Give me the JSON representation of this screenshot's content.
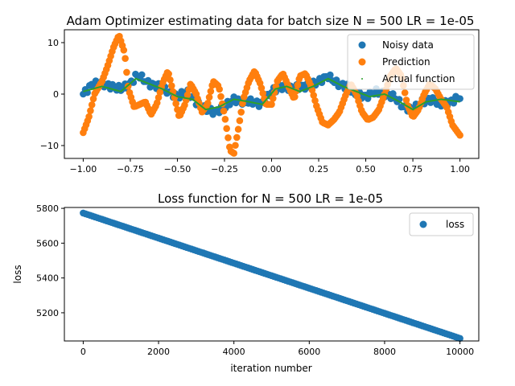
{
  "chart_data": [
    {
      "type": "scatter",
      "title": "Adam Optimizer estimating data for batch size N = 500 LR = 1e-05",
      "xlabel": "",
      "ylabel": "",
      "xlim": [
        -1.1,
        1.1
      ],
      "ylim": [
        -12.5,
        12.5
      ],
      "xticks": [
        -1.0,
        -0.75,
        -0.5,
        -0.25,
        0.0,
        0.25,
        0.5,
        0.75,
        1.0
      ],
      "xtick_labels": [
        "−1.00",
        "−0.75",
        "−0.50",
        "−0.25",
        "0.00",
        "0.25",
        "0.50",
        "0.75",
        "1.00"
      ],
      "yticks": [
        -10,
        0,
        10
      ],
      "ytick_labels": [
        "−10",
        "0",
        "10"
      ],
      "grid": false,
      "legend_position": "top-right",
      "series": [
        {
          "name": "Noisy data",
          "style": "scatter",
          "color": "#1f77b4",
          "x": [
            -1.0,
            -0.95,
            -0.9,
            -0.85,
            -0.8,
            -0.75,
            -0.72,
            -0.7,
            -0.65,
            -0.6,
            -0.55,
            -0.5,
            -0.45,
            -0.4,
            -0.35,
            -0.3,
            -0.25,
            -0.2,
            -0.15,
            -0.1,
            -0.05,
            0.0,
            0.05,
            0.1,
            0.15,
            0.2,
            0.25,
            0.3,
            0.35,
            0.4,
            0.45,
            0.5,
            0.55,
            0.6,
            0.65,
            0.7,
            0.75,
            0.8,
            0.85,
            0.9,
            0.95,
            1.0
          ],
          "y": [
            0.0,
            2.0,
            2.0,
            1.5,
            1.0,
            2.0,
            3.5,
            3.5,
            2.0,
            1.5,
            0.5,
            -0.5,
            0.5,
            -1.5,
            -3.0,
            -3.5,
            -2.5,
            -1.0,
            -1.5,
            -1.5,
            -2.0,
            0.5,
            1.5,
            1.0,
            1.5,
            1.5,
            2.5,
            3.5,
            2.0,
            1.5,
            0.0,
            -0.5,
            0.5,
            0.0,
            -0.5,
            -2.5,
            -3.0,
            -1.5,
            -1.0,
            -2.0,
            -1.5,
            -0.5
          ]
        },
        {
          "name": "Prediction",
          "style": "scatter",
          "color": "#ff7f0e",
          "x": [
            -1.0,
            -0.97,
            -0.94,
            -0.9,
            -0.87,
            -0.84,
            -0.81,
            -0.78,
            -0.76,
            -0.73,
            -0.7,
            -0.67,
            -0.64,
            -0.61,
            -0.58,
            -0.55,
            -0.52,
            -0.49,
            -0.46,
            -0.43,
            -0.4,
            -0.37,
            -0.34,
            -0.31,
            -0.28,
            -0.25,
            -0.22,
            -0.2,
            -0.18,
            -0.15,
            -0.12,
            -0.09,
            -0.06,
            -0.03,
            0.0,
            0.03,
            0.06,
            0.09,
            0.12,
            0.15,
            0.18,
            0.21,
            0.24,
            0.27,
            0.3,
            0.33,
            0.36,
            0.39,
            0.42,
            0.45,
            0.48,
            0.51,
            0.54,
            0.57,
            0.6,
            0.63,
            0.66,
            0.69,
            0.72,
            0.75,
            0.78,
            0.81,
            0.84,
            0.87,
            0.9,
            0.93,
            0.96,
            1.0
          ],
          "y": [
            -7.5,
            -4.5,
            0.0,
            2.5,
            5.5,
            9.0,
            11.5,
            8.0,
            1.0,
            -2.5,
            -2.0,
            -1.5,
            -4.0,
            -2.0,
            2.0,
            4.5,
            0.0,
            -4.5,
            -2.0,
            2.0,
            0.0,
            -3.5,
            -2.0,
            2.5,
            1.5,
            -4.0,
            -11.0,
            -11.5,
            -7.5,
            -1.0,
            2.5,
            4.5,
            2.0,
            -2.0,
            -2.0,
            2.5,
            4.0,
            1.5,
            -1.0,
            3.5,
            4.0,
            1.5,
            -2.5,
            -5.5,
            -6.0,
            -5.0,
            -3.5,
            -0.5,
            2.0,
            0.0,
            -3.5,
            -5.0,
            -4.5,
            -3.0,
            0.0,
            3.5,
            5.0,
            3.5,
            -2.0,
            -4.5,
            -3.0,
            0.0,
            2.0,
            1.0,
            -1.0,
            -2.5,
            -6.0,
            -8.0
          ]
        },
        {
          "name": "Actual function",
          "style": "line",
          "color": "#2ca02c",
          "x": [
            -1.0,
            -0.9,
            -0.8,
            -0.72,
            -0.65,
            -0.58,
            -0.5,
            -0.42,
            -0.35,
            -0.28,
            -0.2,
            -0.12,
            -0.05,
            0.02,
            0.08,
            0.15,
            0.22,
            0.3,
            0.38,
            0.45,
            0.52,
            0.6,
            0.68,
            0.75,
            0.82,
            0.9,
            1.0
          ],
          "y": [
            0.5,
            1.5,
            0.5,
            3.0,
            2.0,
            1.0,
            -0.5,
            -1.0,
            -3.0,
            -2.5,
            -1.0,
            -1.5,
            -2.0,
            1.0,
            1.5,
            0.5,
            1.5,
            3.0,
            1.5,
            0.5,
            -0.5,
            0.0,
            -1.5,
            -3.0,
            -1.5,
            -1.0,
            -1.5
          ]
        }
      ]
    },
    {
      "type": "scatter",
      "title": "Loss function for N = 500 LR = 1e-05",
      "xlabel": "iteration number",
      "ylabel": "loss",
      "xlim": [
        -500,
        10500
      ],
      "ylim": [
        5038,
        5805
      ],
      "xticks": [
        0,
        2000,
        4000,
        6000,
        8000,
        10000
      ],
      "xtick_labels": [
        "0",
        "2000",
        "4000",
        "6000",
        "8000",
        "10000"
      ],
      "yticks": [
        5200,
        5400,
        5600,
        5800
      ],
      "ytick_labels": [
        "5200",
        "5400",
        "5600",
        "5800"
      ],
      "grid": false,
      "legend_position": "top-right",
      "series": [
        {
          "name": "loss",
          "style": "scatter",
          "color": "#1f77b4",
          "x_start": 0,
          "x_end": 10000,
          "y_start": 5773,
          "y_end": 5053
        }
      ]
    }
  ]
}
